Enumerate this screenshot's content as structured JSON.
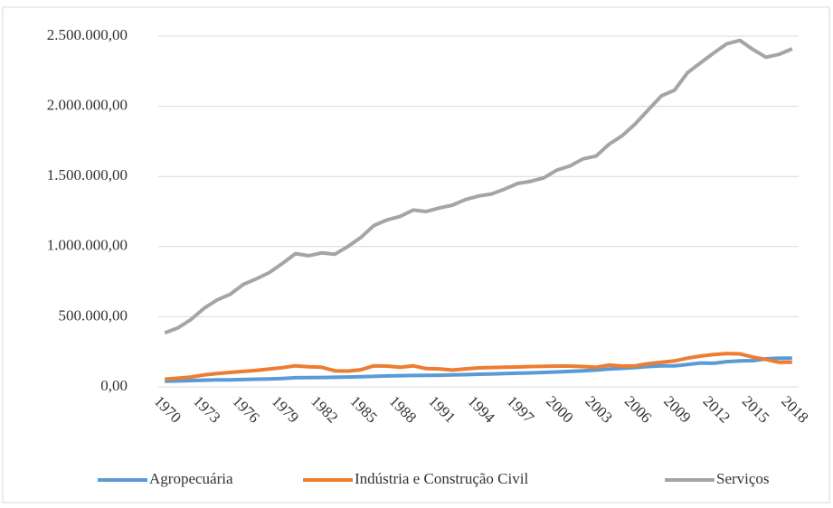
{
  "chart_data": {
    "type": "line",
    "x": [
      1970,
      1971,
      1972,
      1973,
      1974,
      1975,
      1976,
      1977,
      1978,
      1979,
      1980,
      1981,
      1982,
      1983,
      1984,
      1985,
      1986,
      1987,
      1988,
      1989,
      1990,
      1991,
      1992,
      1993,
      1994,
      1995,
      1996,
      1997,
      1998,
      1999,
      2000,
      2001,
      2002,
      2003,
      2004,
      2005,
      2006,
      2007,
      2008,
      2009,
      2010,
      2011,
      2012,
      2013,
      2014,
      2015,
      2016,
      2017,
      2018
    ],
    "xlim": [
      1969.5,
      2018.5
    ],
    "xticks": [
      1970,
      1973,
      1976,
      1979,
      1982,
      1985,
      1988,
      1991,
      1994,
      1997,
      2000,
      2003,
      2006,
      2009,
      2012,
      2015,
      2018
    ],
    "ylim": [
      0,
      2500000
    ],
    "yticks": [
      {
        "value": 0,
        "label": "0,00"
      },
      {
        "value": 500000,
        "label": "500.000,00"
      },
      {
        "value": 1000000,
        "label": "1.000.000,00"
      },
      {
        "value": 1500000,
        "label": "1.500.000,00"
      },
      {
        "value": 2000000,
        "label": "2.000.000,00"
      },
      {
        "value": 2500000,
        "label": "2.500.000,00"
      }
    ],
    "grid": true,
    "legend": "bottom",
    "series": [
      {
        "name": "Agropecuária",
        "color": "#5b9bd5",
        "values": [
          40000,
          42000,
          45000,
          48000,
          50000,
          50000,
          52000,
          55000,
          57000,
          60000,
          65000,
          66000,
          67000,
          68000,
          70000,
          72000,
          75000,
          78000,
          80000,
          81000,
          82000,
          83000,
          85000,
          87000,
          90000,
          92000,
          95000,
          97000,
          100000,
          103000,
          106000,
          110000,
          115000,
          120000,
          127000,
          132000,
          138000,
          145000,
          150000,
          150000,
          160000,
          170000,
          168000,
          180000,
          185000,
          187000,
          200000,
          205000,
          205000
        ]
      },
      {
        "name": "Indústria e Construção Civil",
        "color": "#ed7d31",
        "values": [
          55000,
          62000,
          70000,
          85000,
          95000,
          103000,
          110000,
          118000,
          127000,
          137000,
          150000,
          143000,
          140000,
          115000,
          113000,
          122000,
          150000,
          148000,
          140000,
          150000,
          130000,
          128000,
          120000,
          128000,
          135000,
          138000,
          140000,
          142000,
          145000,
          146000,
          148000,
          148000,
          145000,
          140000,
          155000,
          148000,
          150000,
          165000,
          175000,
          185000,
          205000,
          220000,
          230000,
          238000,
          235000,
          212000,
          195000,
          175000,
          175000
        ]
      },
      {
        "name": "Serviços",
        "color": "#a5a5a5",
        "values": [
          385000,
          420000,
          480000,
          560000,
          620000,
          660000,
          730000,
          770000,
          815000,
          880000,
          950000,
          935000,
          955000,
          945000,
          1000000,
          1065000,
          1150000,
          1190000,
          1215000,
          1260000,
          1250000,
          1275000,
          1295000,
          1335000,
          1360000,
          1375000,
          1410000,
          1450000,
          1465000,
          1490000,
          1545000,
          1575000,
          1625000,
          1645000,
          1730000,
          1790000,
          1875000,
          1975000,
          2075000,
          2115000,
          2240000,
          2310000,
          2380000,
          2445000,
          2470000,
          2405000,
          2350000,
          2370000,
          2410000
        ]
      }
    ]
  }
}
